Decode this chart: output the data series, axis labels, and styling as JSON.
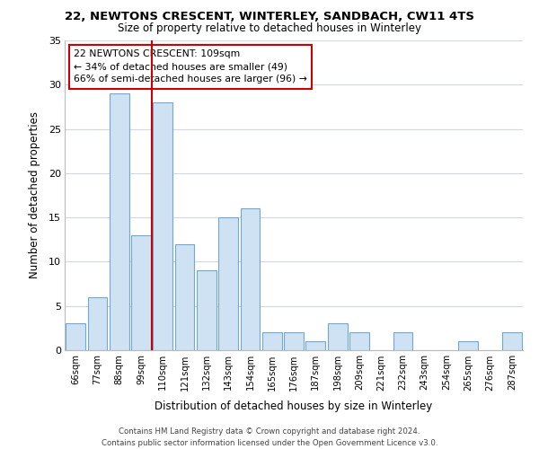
{
  "title": "22, NEWTONS CRESCENT, WINTERLEY, SANDBACH, CW11 4TS",
  "subtitle": "Size of property relative to detached houses in Winterley",
  "xlabel": "Distribution of detached houses by size in Winterley",
  "ylabel": "Number of detached properties",
  "bar_labels": [
    "66sqm",
    "77sqm",
    "88sqm",
    "99sqm",
    "110sqm",
    "121sqm",
    "132sqm",
    "143sqm",
    "154sqm",
    "165sqm",
    "176sqm",
    "187sqm",
    "198sqm",
    "209sqm",
    "221sqm",
    "232sqm",
    "243sqm",
    "254sqm",
    "265sqm",
    "276sqm",
    "287sqm"
  ],
  "bar_values": [
    3,
    6,
    29,
    13,
    28,
    12,
    9,
    15,
    16,
    2,
    2,
    1,
    3,
    2,
    0,
    2,
    0,
    0,
    1,
    0,
    2
  ],
  "bar_color": "#cfe2f3",
  "bar_edge_color": "#6fa8d0",
  "highlight_line_color": "#cc0000",
  "annotation_title": "22 NEWTONS CRESCENT: 109sqm",
  "annotation_line1": "← 34% of detached houses are smaller (49)",
  "annotation_line2": "66% of semi-detached houses are larger (96) →",
  "annotation_box_color": "#ffffff",
  "annotation_box_edge": "#cc0000",
  "ylim": [
    0,
    35
  ],
  "yticks": [
    0,
    5,
    10,
    15,
    20,
    25,
    30,
    35
  ],
  "footer1": "Contains HM Land Registry data © Crown copyright and database right 2024.",
  "footer2": "Contains public sector information licensed under the Open Government Licence v3.0.",
  "bg_color": "#ffffff",
  "grid_color": "#d0d8e0"
}
